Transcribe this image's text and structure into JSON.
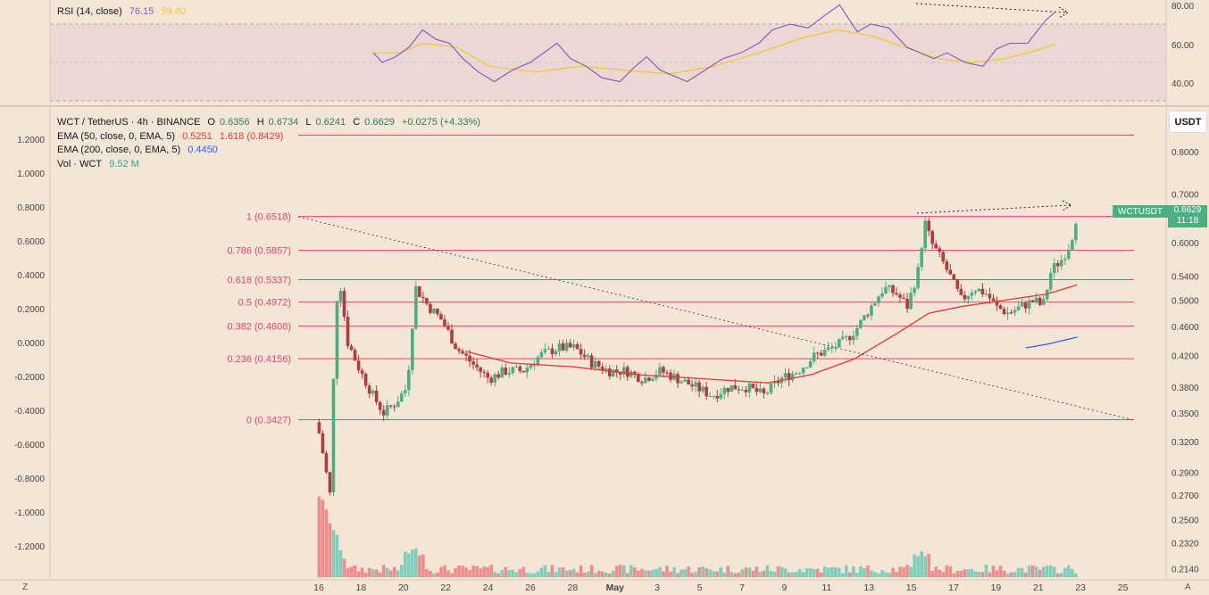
{
  "rsi": {
    "title": "RSI (14, close)",
    "value": "76.15",
    "ma_value": "59.40",
    "colors": {
      "rsi": "#7e57c2",
      "ma": "#f5c62c"
    },
    "ticks": [
      "80.00",
      "60.00",
      "40.00"
    ],
    "upper_band": 70,
    "lower_band": 30
  },
  "main": {
    "symbol_line": "WCT / TetherUS · 4h · BINANCE",
    "ohlc": {
      "o_label": "O",
      "o": "0.6356",
      "h_label": "H",
      "h": "0.6734",
      "l_label": "L",
      "l": "0.6241",
      "c_label": "C",
      "c": "0.6629",
      "chg": "+0.0275 (+4.33%)"
    },
    "ema50": {
      "label": "EMA (50, close, 0, EMA, 5)",
      "v1": "0.5251",
      "v2": "1.618 (0.8429)",
      "color": "#e53935"
    },
    "ema200": {
      "label": "EMA (200, close, 0, EMA, 5)",
      "v1": "0.4450",
      "color": "#2962ff"
    },
    "vol": {
      "label": "Vol · WCT",
      "value": "9.52 M"
    },
    "currency_button": "USDT",
    "price_tag": {
      "symbol": "WCTUSDT",
      "price": "0.6629",
      "timer": "11:18"
    },
    "corner_left": "Z",
    "corner_right": "A",
    "colors": {
      "up": "#4caf82",
      "down": "#b23c3c",
      "up_vol": "#7fcdbb",
      "down_vol": "#f08c8c",
      "fib": "#e0456e"
    }
  },
  "chart_data": {
    "type": "candlestick",
    "title": "WCT / TetherUS · 4h · BINANCE",
    "x_ticks": [
      "16",
      "18",
      "20",
      "22",
      "24",
      "26",
      "28",
      "May",
      "3",
      "5",
      "7",
      "9",
      "11",
      "13",
      "15",
      "17",
      "19",
      "21",
      "23",
      "25"
    ],
    "right_axis_ticks": [
      "0.8000",
      "0.7000",
      "0.6000",
      "0.5400",
      "0.5000",
      "0.4600",
      "0.4200",
      "0.3800",
      "0.3500",
      "0.3200",
      "0.2900",
      "0.2700",
      "0.2500",
      "0.2320",
      "0.2140"
    ],
    "left_axis_ticks": [
      "1.2000",
      "1.0000",
      "0.8000",
      "0.6000",
      "0.4000",
      "0.2000",
      "0.0000",
      "-0.2000",
      "-0.4000",
      "-0.6000",
      "-0.8000",
      "-1.0000",
      "-1.2000"
    ],
    "fib_levels": [
      {
        "label": "1 (0.6518)",
        "price": 0.6518
      },
      {
        "label": "0.786 (0.5857)",
        "price": 0.5857
      },
      {
        "label": "0.618 (0.5337)",
        "price": 0.5337
      },
      {
        "label": "0.5 (0.4972)",
        "price": 0.4972
      },
      {
        "label": "0.382 (0.4608)",
        "price": 0.4608
      },
      {
        "label": "0.236 (0.4156)",
        "price": 0.4156
      },
      {
        "label": "0 (0.3427)",
        "price": 0.3427
      }
    ],
    "extension_level": 0.8429,
    "close_path": [
      [
        0,
        0.34
      ],
      [
        0.6,
        0.27
      ],
      [
        1.0,
        0.55
      ],
      [
        1.4,
        0.44
      ],
      [
        2.0,
        0.4
      ],
      [
        2.6,
        0.37
      ],
      [
        3.1,
        0.35
      ],
      [
        3.6,
        0.36
      ],
      [
        4.2,
        0.38
      ],
      [
        4.6,
        0.52
      ],
      [
        5.2,
        0.49
      ],
      [
        5.8,
        0.47
      ],
      [
        6.5,
        0.43
      ],
      [
        7.2,
        0.41
      ],
      [
        8.0,
        0.39
      ],
      [
        8.8,
        0.4
      ],
      [
        9.6,
        0.4
      ],
      [
        10.4,
        0.42
      ],
      [
        11.2,
        0.43
      ],
      [
        12.0,
        0.43
      ],
      [
        12.8,
        0.41
      ],
      [
        13.6,
        0.4
      ],
      [
        14.4,
        0.4
      ],
      [
        15.2,
        0.39
      ],
      [
        16.0,
        0.4
      ],
      [
        16.8,
        0.39
      ],
      [
        17.6,
        0.38
      ],
      [
        18.4,
        0.37
      ],
      [
        19.2,
        0.38
      ],
      [
        20.0,
        0.38
      ],
      [
        20.8,
        0.37
      ],
      [
        21.6,
        0.39
      ],
      [
        22.4,
        0.4
      ],
      [
        23.2,
        0.42
      ],
      [
        24.0,
        0.43
      ],
      [
        24.6,
        0.44
      ],
      [
        25.2,
        0.46
      ],
      [
        25.8,
        0.49
      ],
      [
        26.4,
        0.52
      ],
      [
        27.0,
        0.51
      ],
      [
        27.5,
        0.49
      ],
      [
        28.0,
        0.55
      ],
      [
        28.3,
        0.64
      ],
      [
        28.6,
        0.6
      ],
      [
        29.2,
        0.56
      ],
      [
        29.6,
        0.53
      ],
      [
        30.0,
        0.5
      ],
      [
        30.6,
        0.52
      ],
      [
        31.2,
        0.51
      ],
      [
        31.6,
        0.49
      ],
      [
        32.2,
        0.48
      ],
      [
        32.8,
        0.49
      ],
      [
        33.4,
        0.5
      ],
      [
        33.8,
        0.49
      ],
      [
        34.2,
        0.55
      ],
      [
        34.7,
        0.57
      ],
      [
        35.1,
        0.6
      ],
      [
        35.4,
        0.66
      ]
    ],
    "ema50_path": [
      [
        7.0,
        0.425
      ],
      [
        9.0,
        0.41
      ],
      [
        12.0,
        0.405
      ],
      [
        15.0,
        0.395
      ],
      [
        18.0,
        0.39
      ],
      [
        21.0,
        0.385
      ],
      [
        23.0,
        0.395
      ],
      [
        25.0,
        0.415
      ],
      [
        27.0,
        0.45
      ],
      [
        28.5,
        0.48
      ],
      [
        30.0,
        0.49
      ],
      [
        32.0,
        0.5
      ],
      [
        34.0,
        0.51
      ],
      [
        35.4,
        0.5251
      ]
    ],
    "ema200_path": [
      [
        33.0,
        0.43
      ],
      [
        34.0,
        0.435
      ],
      [
        35.4,
        0.445
      ]
    ],
    "rsi_path": [
      [
        0.8,
        55
      ],
      [
        1.2,
        50
      ],
      [
        1.8,
        53
      ],
      [
        2.4,
        58
      ],
      [
        3.0,
        67
      ],
      [
        3.6,
        62
      ],
      [
        4.2,
        60
      ],
      [
        4.8,
        52
      ],
      [
        5.5,
        45
      ],
      [
        6.2,
        40
      ],
      [
        7.0,
        46
      ],
      [
        7.8,
        50
      ],
      [
        8.4,
        55
      ],
      [
        9.0,
        60
      ],
      [
        9.6,
        52
      ],
      [
        10.3,
        48
      ],
      [
        11.0,
        42
      ],
      [
        11.8,
        40
      ],
      [
        12.4,
        47
      ],
      [
        13.0,
        53
      ],
      [
        13.6,
        46
      ],
      [
        14.2,
        43
      ],
      [
        14.8,
        40
      ],
      [
        15.6,
        46
      ],
      [
        16.4,
        52
      ],
      [
        17.2,
        55
      ],
      [
        18.0,
        60
      ],
      [
        18.6,
        67
      ],
      [
        19.4,
        70
      ],
      [
        20.2,
        68
      ],
      [
        21.0,
        75
      ],
      [
        21.6,
        80
      ],
      [
        22.4,
        66
      ],
      [
        23.0,
        70
      ],
      [
        23.8,
        68
      ],
      [
        24.6,
        58
      ],
      [
        25.2,
        55
      ],
      [
        25.8,
        52
      ],
      [
        26.4,
        55
      ],
      [
        27.2,
        50
      ],
      [
        28.0,
        48
      ],
      [
        28.6,
        57
      ],
      [
        29.2,
        60
      ],
      [
        30.0,
        60
      ],
      [
        30.4,
        66
      ],
      [
        30.8,
        72
      ],
      [
        31.2,
        76
      ]
    ],
    "rsi_ma_path": [
      [
        0.8,
        55
      ],
      [
        2.0,
        55
      ],
      [
        3.0,
        60
      ],
      [
        4.5,
        58
      ],
      [
        6.0,
        48
      ],
      [
        8.0,
        45
      ],
      [
        10.0,
        48
      ],
      [
        12.0,
        46
      ],
      [
        14.0,
        44
      ],
      [
        16.0,
        48
      ],
      [
        18.0,
        55
      ],
      [
        20.0,
        63
      ],
      [
        21.5,
        67
      ],
      [
        23.0,
        64
      ],
      [
        24.5,
        58
      ],
      [
        26.0,
        52
      ],
      [
        27.5,
        50
      ],
      [
        29.0,
        52
      ],
      [
        30.0,
        55
      ],
      [
        31.2,
        59.4
      ]
    ]
  }
}
